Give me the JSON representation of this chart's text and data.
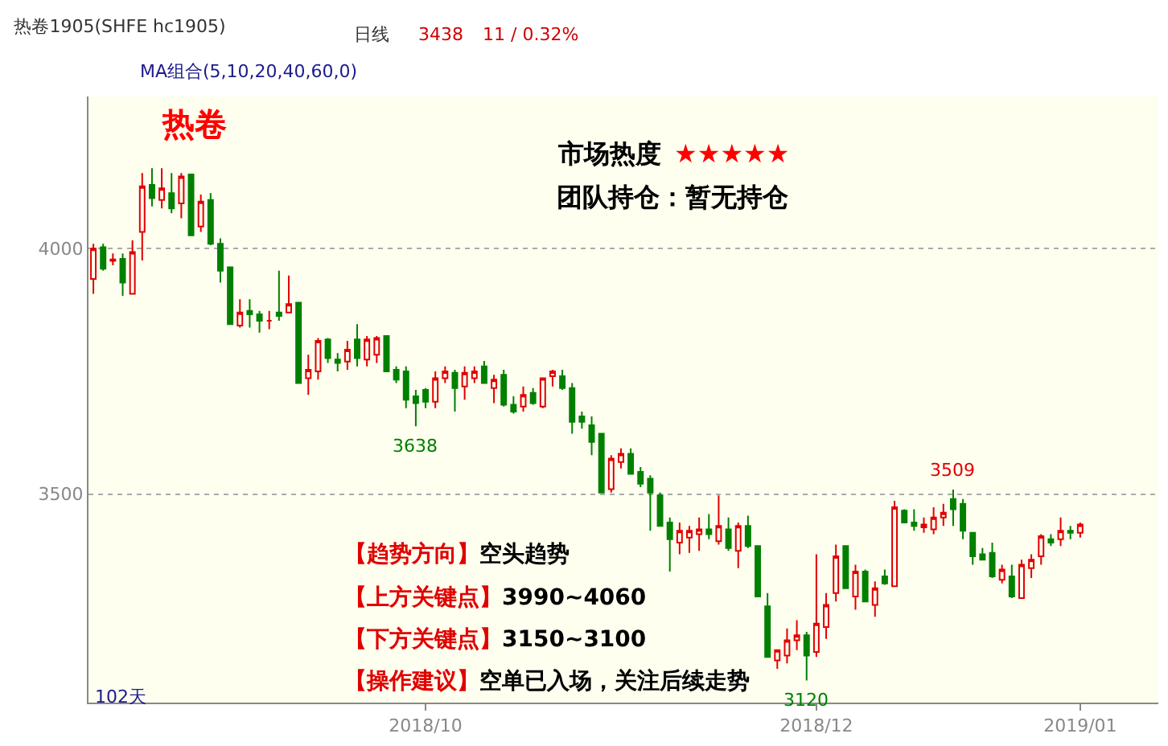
{
  "chart_data": {
    "type": "candlestick",
    "title": "热卷1905(SHFE hc1905)",
    "categories": [
      null,
      null,
      null,
      null,
      null,
      null,
      null,
      null,
      null,
      null,
      null,
      null,
      null,
      null,
      null,
      null,
      null,
      null,
      null,
      null,
      null,
      null,
      null,
      null,
      null,
      null,
      null,
      null,
      null,
      null,
      null,
      null,
      null,
      null,
      "2018/10",
      null,
      null,
      null,
      null,
      null,
      null,
      null,
      null,
      null,
      null,
      null,
      null,
      null,
      null,
      null,
      null,
      null,
      null,
      null,
      null,
      null,
      null,
      null,
      null,
      null,
      null,
      null,
      null,
      null,
      null,
      null,
      null,
      null,
      null,
      null,
      null,
      null,
      null,
      null,
      "2018/12",
      null,
      null,
      null,
      null,
      null,
      null,
      null,
      null,
      null,
      null,
      null,
      null,
      null,
      null,
      null,
      null,
      null,
      null,
      null,
      null,
      null,
      null,
      null,
      null,
      null,
      null,
      "2019/01"
    ],
    "ohlc": [
      [
        3938,
        4010,
        3908,
        4000
      ],
      [
        4003,
        4010,
        3955,
        3959
      ],
      [
        3975,
        3990,
        3966,
        3978
      ],
      [
        3979,
        3990,
        3904,
        3931
      ],
      [
        3908,
        4017,
        3908,
        3993
      ],
      [
        4034,
        4154,
        3976,
        4127
      ],
      [
        4130,
        4164,
        4086,
        4103
      ],
      [
        4099,
        4164,
        4082,
        4123
      ],
      [
        4113,
        4154,
        4072,
        4082
      ],
      [
        4092,
        4154,
        4062,
        4147
      ],
      [
        4151,
        4151,
        4027,
        4027
      ],
      [
        4045,
        4110,
        4034,
        4096
      ],
      [
        4099,
        4113,
        4007,
        4010
      ],
      [
        4010,
        4021,
        3931,
        3955
      ],
      [
        3962,
        3962,
        3846,
        3846
      ],
      [
        3843,
        3897,
        3839,
        3870
      ],
      [
        3873,
        3897,
        3839,
        3866
      ],
      [
        3866,
        3873,
        3829,
        3853
      ],
      [
        3853,
        3873,
        3836,
        3853
      ],
      [
        3870,
        3955,
        3853,
        3863
      ],
      [
        3870,
        3945,
        3870,
        3887
      ],
      [
        3890,
        3890,
        3726,
        3726
      ],
      [
        3736,
        3784,
        3702,
        3753
      ],
      [
        3750,
        3818,
        3733,
        3812
      ],
      [
        3815,
        3818,
        3767,
        3777
      ],
      [
        3774,
        3787,
        3750,
        3767
      ],
      [
        3770,
        3812,
        3753,
        3794
      ],
      [
        3815,
        3846,
        3760,
        3777
      ],
      [
        3774,
        3822,
        3760,
        3815
      ],
      [
        3784,
        3822,
        3767,
        3818
      ],
      [
        3822,
        3822,
        3750,
        3750
      ],
      [
        3753,
        3760,
        3726,
        3733
      ],
      [
        3750,
        3760,
        3675,
        3692
      ],
      [
        3699,
        3712,
        3638,
        3685
      ],
      [
        3712,
        3716,
        3675,
        3688
      ],
      [
        3688,
        3750,
        3675,
        3736
      ],
      [
        3736,
        3760,
        3726,
        3750
      ],
      [
        3747,
        3753,
        3668,
        3716
      ],
      [
        3719,
        3760,
        3692,
        3747
      ],
      [
        3736,
        3760,
        3726,
        3750
      ],
      [
        3760,
        3771,
        3726,
        3726
      ],
      [
        3716,
        3743,
        3685,
        3733
      ],
      [
        3743,
        3753,
        3678,
        3682
      ],
      [
        3682,
        3699,
        3664,
        3668
      ],
      [
        3678,
        3719,
        3668,
        3702
      ],
      [
        3706,
        3716,
        3682,
        3685
      ],
      [
        3678,
        3736,
        3675,
        3736
      ],
      [
        3740,
        3753,
        3719,
        3750
      ],
      [
        3740,
        3753,
        3712,
        3716
      ],
      [
        3716,
        3726,
        3623,
        3647
      ],
      [
        3658,
        3668,
        3633,
        3647
      ],
      [
        3640,
        3658,
        3579,
        3606
      ],
      [
        3623,
        3623,
        3503,
        3503
      ],
      [
        3510,
        3579,
        3503,
        3572
      ],
      [
        3565,
        3593,
        3552,
        3582
      ],
      [
        3582,
        3593,
        3541,
        3541
      ],
      [
        3545,
        3555,
        3514,
        3521
      ],
      [
        3531,
        3538,
        3425,
        3503
      ],
      [
        3497,
        3503,
        3435,
        3435
      ],
      [
        3442,
        3452,
        3342,
        3408
      ],
      [
        3401,
        3442,
        3377,
        3425
      ],
      [
        3411,
        3435,
        3380,
        3425
      ],
      [
        3418,
        3452,
        3384,
        3428
      ],
      [
        3428,
        3459,
        3408,
        3418
      ],
      [
        3404,
        3497,
        3397,
        3435
      ],
      [
        3428,
        3452,
        3384,
        3390
      ],
      [
        3384,
        3442,
        3349,
        3435
      ],
      [
        3435,
        3456,
        3390,
        3394
      ],
      [
        3394,
        3394,
        3291,
        3291
      ],
      [
        3271,
        3298,
        3168,
        3168
      ],
      [
        3161,
        3182,
        3144,
        3182
      ],
      [
        3171,
        3226,
        3155,
        3202
      ],
      [
        3202,
        3243,
        3182,
        3212
      ],
      [
        3212,
        3219,
        3120,
        3171
      ],
      [
        3178,
        3377,
        3168,
        3236
      ],
      [
        3229,
        3298,
        3205,
        3274
      ],
      [
        3298,
        3397,
        3281,
        3373
      ],
      [
        3394,
        3394,
        3308,
        3308
      ],
      [
        3291,
        3356,
        3264,
        3342
      ],
      [
        3342,
        3346,
        3281,
        3281
      ],
      [
        3274,
        3322,
        3250,
        3308
      ],
      [
        3332,
        3346,
        3315,
        3318
      ],
      [
        3312,
        3486,
        3312,
        3473
      ],
      [
        3466,
        3469,
        3442,
        3442
      ],
      [
        3442,
        3469,
        3425,
        3435
      ],
      [
        3432,
        3452,
        3421,
        3438
      ],
      [
        3428,
        3473,
        3418,
        3452
      ],
      [
        3452,
        3480,
        3435,
        3462
      ],
      [
        3490,
        3509,
        3435,
        3469
      ],
      [
        3480,
        3490,
        3408,
        3425
      ],
      [
        3421,
        3421,
        3356,
        3373
      ],
      [
        3377,
        3390,
        3366,
        3366
      ],
      [
        3380,
        3401,
        3329,
        3332
      ],
      [
        3325,
        3356,
        3318,
        3346
      ],
      [
        3332,
        3356,
        3288,
        3291
      ],
      [
        3288,
        3366,
        3288,
        3356
      ],
      [
        3349,
        3377,
        3329,
        3366
      ],
      [
        3373,
        3418,
        3356,
        3414
      ],
      [
        3408,
        3418,
        3394,
        3401
      ],
      [
        3408,
        3452,
        3394,
        3425
      ],
      [
        3425,
        3435,
        3408,
        3421
      ],
      [
        3421,
        3442,
        3411,
        3438
      ]
    ],
    "ylim": [
      3075,
      4310
    ],
    "yticks": [
      3500,
      4000
    ],
    "grid": "y",
    "annotations": [
      "日线",
      "3438",
      "11 / 0.32%",
      "MA组合(5,10,20,40,60,0)",
      "热卷",
      "市场热度",
      "★★★★★",
      "团队持仓：暂无持仓",
      "【趋势方向】空头趋势",
      "【上方关键点】3990~4060",
      "【下方关键点】3150~3100",
      "【操作建议】空单已入场，关注后续走势",
      "102天",
      {
        "text": "3638",
        "y": 3638
      },
      {
        "text": "3509",
        "y": 3509
      },
      {
        "text": "3120",
        "y": 3120
      }
    ]
  }
}
